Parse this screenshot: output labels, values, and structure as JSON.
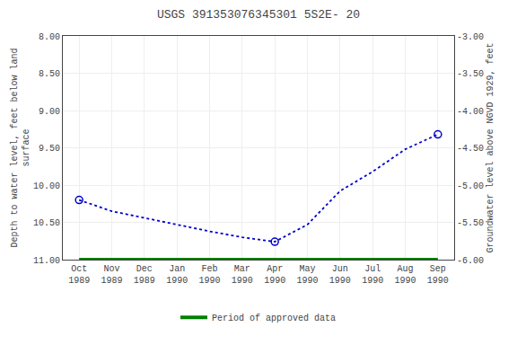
{
  "chart_data": {
    "type": "line",
    "title": "USGS 391353076345301 5S2E- 20",
    "categories": [
      "Oct\n1989",
      "Nov\n1989",
      "Dec\n1989",
      "Jan\n1990",
      "Feb\n1990",
      "Mar\n1990",
      "Apr\n1990",
      "May\n1990",
      "Jun\n1990",
      "Jul\n1990",
      "Aug\n1990",
      "Sep\n1990"
    ],
    "y_label": "Depth to water level, feet below land\nsurface",
    "y2_label": "Groundwater level above NGVD 1929, feet",
    "series": [
      {
        "type": "line",
        "color": "#0000CC",
        "line_style": "dotted",
        "values": [
          10.2,
          10.35,
          10.44,
          10.53,
          10.62,
          10.7,
          10.76,
          10.53,
          10.08,
          9.82,
          9.52,
          9.32
        ]
      },
      {
        "type": "scatter",
        "color": "#0000CC",
        "marker": "circle-open",
        "values": [
          10.2,
          null,
          null,
          null,
          null,
          null,
          10.76,
          null,
          null,
          null,
          null,
          9.32
        ]
      },
      {
        "type": "line",
        "name": "Period of approved data",
        "color": "#008000",
        "line_style": "solid",
        "values": [
          11.0,
          11.0,
          11.0,
          11.0,
          11.0,
          11.0,
          11.0,
          11.0,
          11.0,
          11.0,
          11.0,
          11.0
        ]
      }
    ],
    "ylim": [
      11.0,
      8.0
    ],
    "yticks": [
      {
        "value": 8.0,
        "label": "8.00"
      },
      {
        "value": 8.5,
        "label": "8.50"
      },
      {
        "value": 9.0,
        "label": "9.00"
      },
      {
        "value": 9.5,
        "label": "9.50"
      },
      {
        "value": 10.0,
        "label": "10.00"
      },
      {
        "value": 10.5,
        "label": "10.50"
      },
      {
        "value": 11.0,
        "label": "11.00"
      }
    ],
    "y2lim": [
      -6.0,
      -3.0
    ],
    "y2ticks": [
      {
        "value": -3.0,
        "label": "-3.00"
      },
      {
        "value": -3.5,
        "label": "-3.50"
      },
      {
        "value": -4.0,
        "label": "-4.00"
      },
      {
        "value": -4.5,
        "label": "-4.50"
      },
      {
        "value": -5.0,
        "label": "-5.00"
      },
      {
        "value": -5.5,
        "label": "-5.50"
      },
      {
        "value": -6.0,
        "label": "-6.00"
      }
    ],
    "grid": true,
    "legend": "bottom"
  }
}
